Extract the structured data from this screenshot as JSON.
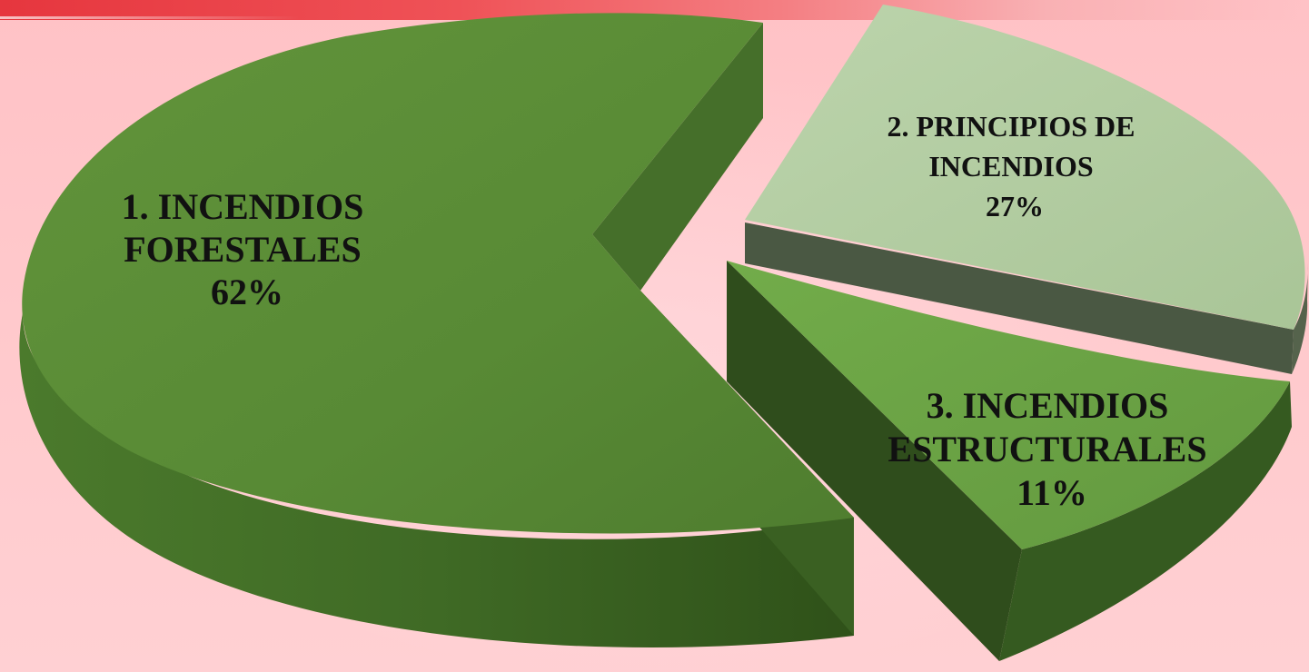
{
  "chart_data": {
    "type": "pie",
    "style": "3d-exploded",
    "slices": [
      {
        "label_lines": [
          "1. INCENDIOS",
          "FORESTALES",
          "62%"
        ],
        "value": 62,
        "color": "#5a8a36",
        "side_color": "#3f6a25"
      },
      {
        "label_lines": [
          "2. PRINCIPIOS DE",
          "INCENDIOS",
          "27%"
        ],
        "value": 27,
        "color": "#b3cda3",
        "side_color": "#4a5843"
      },
      {
        "label_lines": [
          "3. INCENDIOS",
          "ESTRUCTURALES",
          "11%"
        ],
        "value": 11,
        "color": "#6da645",
        "side_color": "#324f1e"
      }
    ],
    "legend": "none"
  }
}
